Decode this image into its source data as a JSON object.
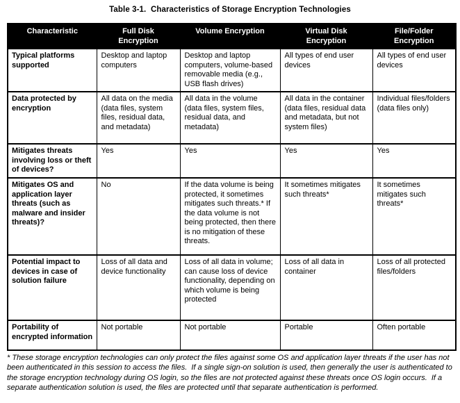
{
  "page": {
    "title": "Table 3-1.  Characteristics of Storage Encryption Technologies",
    "footnote": "* These storage encryption technologies can only protect the files against some OS and application layer threats if the user has not been authenticated in this session to access the files.  If a single sign-on solution is used, then generally the user is authenticated to the storage encryption technology during OS login, so the files are not protected against these threats once OS login occurs.  If a separate authentication solution is used, the files are protected until that separate authentication is performed."
  },
  "colors": {
    "header_bg": "#000000",
    "header_text": "#ffffff",
    "border": "#000000",
    "body_bg": "#ffffff",
    "body_text": "#000000"
  },
  "table": {
    "headers": [
      "Characteristic",
      "Full Disk\nEncryption",
      "Volume Encryption",
      "Virtual Disk\nEncryption",
      "File/Folder\nEncryption"
    ],
    "rows": [
      [
        "Typical platforms supported",
        "Desktop and laptop computers",
        "Desktop and laptop computers, volume-based removable media (e.g., USB flash drives)",
        "All types of end user devices",
        "All types of end user devices"
      ],
      [
        "Data protected by encryption",
        "All data on the media (data files, system files, residual data, and metadata)",
        "All data in the volume (data files, system files, residual data, and metadata)",
        "All data in the container (data files, residual data and metadata, but not system files)",
        "Individual files/folders (data files only)"
      ],
      [
        "Mitigates threats involving loss or theft of devices?",
        "Yes",
        "Yes",
        "Yes",
        "Yes"
      ],
      [
        "Mitigates OS and application layer threats (such as malware and insider threats)?",
        "No",
        "If the data volume is being protected, it sometimes mitigates such threats.* If the data volume is not being protected, then there is no mitigation of these threats.",
        "It sometimes mitigates such threats*",
        "It sometimes mitigates such threats*"
      ],
      [
        "Potential impact to devices in case of solution failure",
        "Loss of all data and device functionality",
        "Loss of all data in volume; can cause loss of device functionality, depending on which volume is being protected",
        "Loss of all data in container",
        "Loss of all protected files/folders"
      ],
      [
        "Portability of encrypted information",
        "Not portable",
        "Not portable",
        "Portable",
        "Often portable"
      ]
    ]
  }
}
